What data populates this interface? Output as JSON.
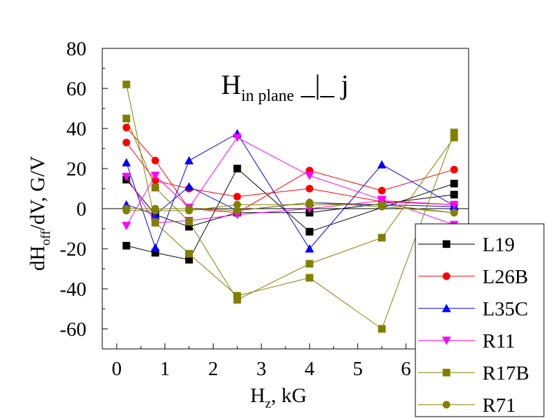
{
  "chart_data": {
    "type": "line",
    "title_main": "H",
    "title_sub": "in plane",
    "title_tail": "_|_ j",
    "xlabel_main": "H",
    "xlabel_sub": "z",
    "xlabel_tail": ", kG",
    "ylabel_pre": "dH",
    "ylabel_sub": "off",
    "ylabel_post": "/dV, G/V",
    "xlim": [
      -0.3,
      7.3
    ],
    "ylim": [
      -70,
      80
    ],
    "xticks": [
      0,
      1,
      2,
      3,
      4,
      5,
      6
    ],
    "yticks": [
      80,
      60,
      40,
      20,
      0,
      -20,
      -40,
      -60
    ],
    "zero_line": true,
    "legend_position": "bottom-right",
    "series": [
      {
        "name": "L19",
        "color": "#000000",
        "marker": "square",
        "groups": [
          {
            "x": [
              0.2,
              0.8,
              1.5,
              2.5,
              4.0,
              7.0
            ],
            "y": [
              -18.5,
              -22.0,
              -25.5,
              20.0,
              -11.5,
              12.5
            ]
          },
          {
            "x": [
              0.2,
              0.8,
              1.5,
              2.5,
              4.0,
              7.0
            ],
            "y": [
              14.5,
              -3.0,
              -9.0,
              -2.0,
              -2.0,
              7.0
            ]
          }
        ]
      },
      {
        "name": "L26B",
        "color": "#ff0000",
        "marker": "circle",
        "groups": [
          {
            "x": [
              0.2,
              0.8,
              1.5,
              2.5,
              4.0,
              5.5,
              7.0
            ],
            "y": [
              33.0,
              14.0,
              10.0,
              6.0,
              10.0,
              3.5,
              2.0
            ]
          },
          {
            "x": [
              0.2,
              0.8,
              1.5,
              2.5,
              4.0,
              5.5,
              7.0
            ],
            "y": [
              40.5,
              24.0,
              0.0,
              -2.0,
              19.0,
              9.0,
              19.5
            ]
          }
        ]
      },
      {
        "name": "L35C",
        "color": "#0000ff",
        "marker": "triangle-up",
        "groups": [
          {
            "x": [
              0.2,
              0.8,
              1.5,
              2.5,
              4.0,
              5.5,
              7.0
            ],
            "y": [
              23.0,
              -19.5,
              24.0,
              37.5,
              -20.0,
              22.0,
              1.5
            ]
          },
          {
            "x": [
              0.2,
              0.8,
              1.5,
              2.5,
              4.0,
              5.5,
              7.0
            ],
            "y": [
              2.0,
              -3.0,
              11.0,
              -1.0,
              3.0,
              2.0,
              1.0
            ]
          }
        ]
      },
      {
        "name": "R11",
        "color": "#ff00ff",
        "marker": "triangle-down",
        "groups": [
          {
            "x": [
              0.2,
              0.8,
              1.5,
              2.5,
              4.0,
              5.5,
              7.0
            ],
            "y": [
              -8.5,
              16.5,
              0.5,
              35.5,
              16.5,
              4.5,
              -8.0
            ]
          },
          {
            "x": [
              0.2,
              0.8,
              1.5,
              2.5,
              4.0,
              5.5,
              7.0
            ],
            "y": [
              16.0,
              -7.0,
              -6.0,
              -3.0,
              0.0,
              4.0,
              2.0
            ]
          }
        ]
      },
      {
        "name": "R17B",
        "color": "#808000",
        "marker": "square",
        "groups": [
          {
            "x": [
              0.2,
              0.8,
              1.5,
              2.5,
              4.0,
              5.5,
              7.0
            ],
            "y": [
              62.0,
              -7.0,
              -22.5,
              -43.5,
              -34.5,
              -60.0,
              38.0
            ]
          },
          {
            "x": [
              0.2,
              0.8,
              1.5,
              2.5,
              4.0,
              5.5,
              7.0
            ],
            "y": [
              45.0,
              10.5,
              -6.5,
              -45.5,
              -27.5,
              -14.5,
              35.5
            ]
          }
        ]
      },
      {
        "name": "R71",
        "color": "#808000",
        "marker": "circle",
        "groups": [
          {
            "x": [
              0.2,
              0.8,
              1.5,
              2.5,
              4.0,
              5.5,
              7.0
            ],
            "y": [
              -1.0,
              -1.0,
              -1.0,
              2.0,
              2.0,
              2.0,
              -2.0
            ]
          },
          {
            "x": [
              0.2,
              0.8,
              1.5,
              2.5,
              4.0,
              5.5,
              7.0
            ],
            "y": [
              0.0,
              0.0,
              0.0,
              -1.0,
              3.0,
              1.0,
              -2.0
            ]
          }
        ]
      }
    ]
  }
}
